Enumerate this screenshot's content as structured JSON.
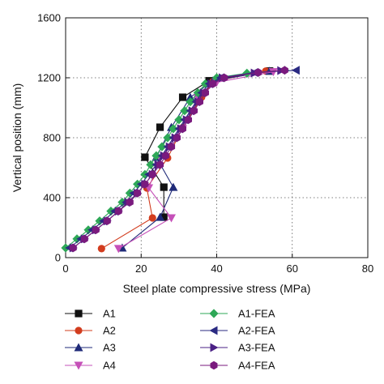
{
  "chart_data": {
    "type": "line",
    "xlabel": "Steel plate compressive stress (MPa)",
    "ylabel": "Vertical position (mm)",
    "xlim": [
      0,
      80
    ],
    "ylim": [
      0,
      1600
    ],
    "x_ticks": [
      0,
      20,
      40,
      60,
      80
    ],
    "y_ticks": [
      0,
      400,
      800,
      1200,
      1600
    ],
    "grid": "dotted",
    "legend_position": "bottom",
    "series": [
      {
        "name": "A1",
        "color": "#111111",
        "marker": "square",
        "points": [
          [
            26,
            270
          ],
          [
            26,
            470
          ],
          [
            21,
            670
          ],
          [
            25,
            870
          ],
          [
            31,
            1070
          ],
          [
            38,
            1180
          ],
          [
            54,
            1245
          ]
        ]
      },
      {
        "name": "A2",
        "color": "#d23c1e",
        "marker": "circle",
        "points": [
          [
            9.5,
            60
          ],
          [
            23,
            265
          ],
          [
            21.5,
            465
          ],
          [
            27,
            665
          ],
          [
            31,
            868
          ],
          [
            36,
            1070
          ],
          [
            39,
            1175
          ],
          [
            53,
            1245
          ]
        ]
      },
      {
        "name": "A3",
        "color": "#1f2a78",
        "marker": "triangle-up",
        "points": [
          [
            15,
            65
          ],
          [
            25,
            270
          ],
          [
            28.5,
            470
          ],
          [
            24,
            670
          ],
          [
            28,
            870
          ],
          [
            33,
            1070
          ],
          [
            39,
            1180
          ],
          [
            54,
            1245
          ]
        ]
      },
      {
        "name": "A4",
        "color": "#c550b8",
        "marker": "triangle-down",
        "points": [
          [
            14,
            60
          ],
          [
            28,
            265
          ],
          [
            22,
            465
          ],
          [
            25,
            665
          ],
          [
            31,
            860
          ],
          [
            35,
            1065
          ],
          [
            40,
            1170
          ],
          [
            55,
            1240
          ]
        ]
      },
      {
        "name": "A1-FEA",
        "color": "#2ea857",
        "marker": "diamond",
        "points": [
          [
            0,
            65
          ],
          [
            3,
            125
          ],
          [
            6,
            185
          ],
          [
            9,
            245
          ],
          [
            12,
            310
          ],
          [
            15,
            370
          ],
          [
            17,
            430
          ],
          [
            19,
            490
          ],
          [
            21,
            555
          ],
          [
            22.5,
            620
          ],
          [
            24,
            680
          ],
          [
            25.5,
            740
          ],
          [
            27,
            800
          ],
          [
            28.5,
            860
          ],
          [
            30,
            920
          ],
          [
            31.5,
            980
          ],
          [
            33,
            1040
          ],
          [
            35,
            1100
          ],
          [
            37,
            1160
          ],
          [
            40,
            1200
          ],
          [
            48,
            1230
          ],
          [
            58,
            1250
          ]
        ]
      },
      {
        "name": "A2-FEA",
        "color": "#2a2a82",
        "marker": "triangle-left",
        "points": [
          [
            1,
            65
          ],
          [
            4,
            125
          ],
          [
            7,
            185
          ],
          [
            10,
            245
          ],
          [
            13,
            310
          ],
          [
            16,
            370
          ],
          [
            18,
            430
          ],
          [
            20,
            490
          ],
          [
            22,
            555
          ],
          [
            24,
            620
          ],
          [
            25.5,
            680
          ],
          [
            27,
            740
          ],
          [
            28.5,
            800
          ],
          [
            30,
            860
          ],
          [
            31.5,
            920
          ],
          [
            33,
            980
          ],
          [
            34.5,
            1040
          ],
          [
            36,
            1100
          ],
          [
            38,
            1160
          ],
          [
            41,
            1200
          ],
          [
            50,
            1235
          ],
          [
            61,
            1250
          ]
        ]
      },
      {
        "name": "A3-FEA",
        "color": "#4a2085",
        "marker": "triangle-right",
        "points": [
          [
            2,
            65
          ],
          [
            5,
            125
          ],
          [
            8,
            185
          ],
          [
            11,
            245
          ],
          [
            14,
            310
          ],
          [
            16.5,
            370
          ],
          [
            19,
            430
          ],
          [
            21,
            490
          ],
          [
            23,
            555
          ],
          [
            24.5,
            620
          ],
          [
            26,
            680
          ],
          [
            27.5,
            740
          ],
          [
            29,
            800
          ],
          [
            30.5,
            860
          ],
          [
            32,
            920
          ],
          [
            33.5,
            980
          ],
          [
            35,
            1040
          ],
          [
            36.5,
            1100
          ],
          [
            38.5,
            1160
          ],
          [
            41.5,
            1200
          ],
          [
            50,
            1232
          ],
          [
            57,
            1248
          ]
        ]
      },
      {
        "name": "A4-FEA",
        "color": "#7a1a7e",
        "marker": "hexagon",
        "points": [
          [
            2,
            65
          ],
          [
            5,
            125
          ],
          [
            8,
            185
          ],
          [
            11,
            245
          ],
          [
            14,
            310
          ],
          [
            17,
            370
          ],
          [
            19,
            430
          ],
          [
            21,
            490
          ],
          [
            23,
            555
          ],
          [
            25,
            620
          ],
          [
            26.5,
            680
          ],
          [
            28,
            740
          ],
          [
            29.5,
            800
          ],
          [
            31,
            860
          ],
          [
            32.5,
            920
          ],
          [
            34,
            980
          ],
          [
            35.5,
            1040
          ],
          [
            37,
            1100
          ],
          [
            39,
            1160
          ],
          [
            42,
            1200
          ],
          [
            51,
            1235
          ],
          [
            58,
            1250
          ]
        ]
      }
    ]
  }
}
